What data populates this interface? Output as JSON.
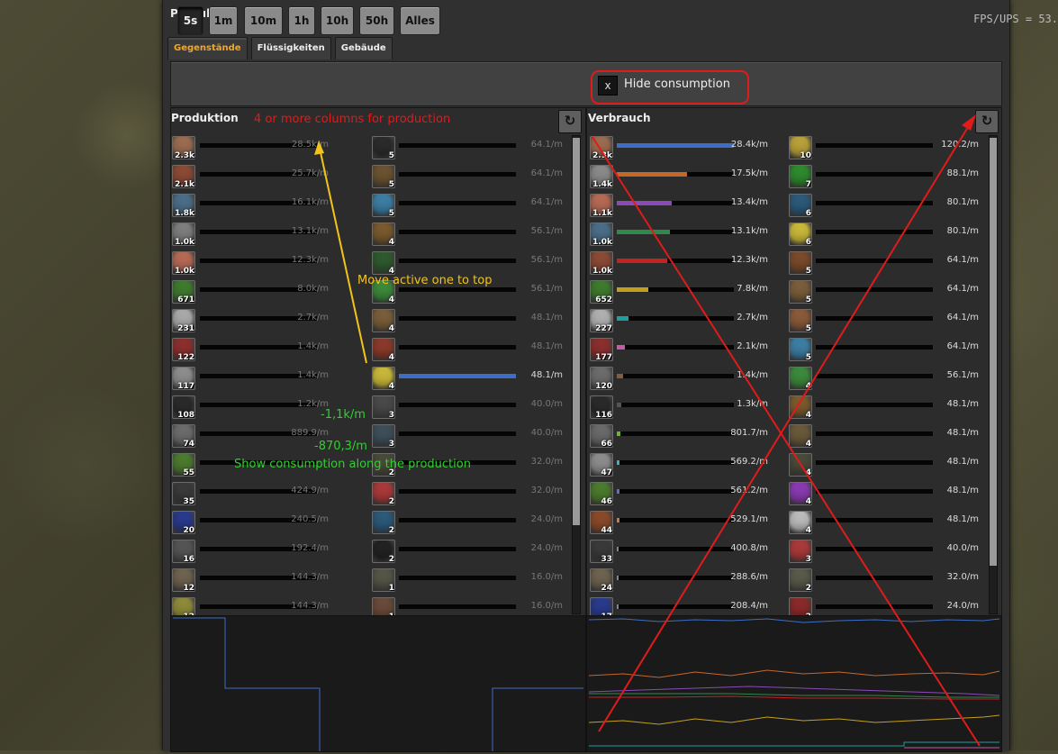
{
  "window": {
    "title": "Produktion",
    "fps": "FPS/UPS = 53."
  },
  "tabs": [
    {
      "label": "Gegenstände",
      "active": true
    },
    {
      "label": "Flüssigkeiten",
      "active": false
    },
    {
      "label": "Gebäude",
      "active": false
    }
  ],
  "time_buttons": [
    {
      "label": "5s",
      "active": true
    },
    {
      "label": "1m",
      "active": false
    },
    {
      "label": "10m",
      "active": false
    },
    {
      "label": "1h",
      "active": false
    },
    {
      "label": "10h",
      "active": false
    },
    {
      "label": "50h",
      "active": false
    },
    {
      "label": "Alles",
      "active": false
    }
  ],
  "hide_consumption": {
    "checkbox": "x",
    "label": "Hide consumption"
  },
  "production": {
    "title": "Produktion",
    "left": [
      {
        "icon": "copper-ore-icon",
        "color": "#9a6c52",
        "count": "2.3k",
        "rate": "28.5k/m",
        "fill": 0.0
      },
      {
        "icon": "copper-ore-pile-icon",
        "color": "#8a4a36",
        "count": "2.1k",
        "rate": "25.7k/m",
        "fill": 0.0
      },
      {
        "icon": "iron-ore-icon",
        "color": "#4b6e88",
        "count": "1.8k",
        "rate": "16.1k/m",
        "fill": 0.0
      },
      {
        "icon": "iron-plate-icon",
        "color": "#7e7e7e",
        "count": "1.0k",
        "rate": "13.1k/m",
        "fill": 0.0
      },
      {
        "icon": "copper-plate-icon",
        "color": "#b56a55",
        "count": "1.0k",
        "rate": "12.3k/m",
        "fill": 0.0
      },
      {
        "icon": "electronic-circuit-icon",
        "color": "#3f7a2e",
        "count": "671",
        "rate": "8.0k/m",
        "fill": 0.0
      },
      {
        "icon": "steel-plate-icon",
        "color": "#a9a9a9",
        "count": "231",
        "rate": "2.7k/m",
        "fill": 0.0
      },
      {
        "icon": "brick-icon",
        "color": "#8b2f2f",
        "count": "122",
        "rate": "1.4k/m",
        "fill": 0.0
      },
      {
        "icon": "pipe-icon",
        "color": "#8d8d8d",
        "count": "117",
        "rate": "1.4k/m",
        "fill": 0.0
      },
      {
        "icon": "coal-icon",
        "color": "#2a2a2a",
        "count": "108",
        "rate": "1.2k/m",
        "fill": 0.0
      },
      {
        "icon": "iron-gear-icon",
        "color": "#6c6c6c",
        "count": "74",
        "rate": "889.9/m",
        "fill": 0.0
      },
      {
        "icon": "wood-icon",
        "color": "#4c7a2e",
        "count": "55",
        "rate": "",
        "fill": 0.0
      },
      {
        "icon": "stone-icon",
        "color": "#3a3a3a",
        "count": "35",
        "rate": "424.9/m",
        "fill": 0.0
      },
      {
        "icon": "advanced-circuit-icon",
        "color": "#2a3a8b",
        "count": "20",
        "rate": "240.5/m",
        "fill": 0.0
      },
      {
        "icon": "engine-unit-icon",
        "color": "#555555",
        "count": "16",
        "rate": "192.4/m",
        "fill": 0.0
      },
      {
        "icon": "rail-icon",
        "color": "#6e6250",
        "count": "12",
        "rate": "144.3/m",
        "fill": 0.0
      },
      {
        "icon": "sulfur-icon",
        "color": "#8e8a3a",
        "count": "12",
        "rate": "144.3/m",
        "fill": 0.0
      }
    ],
    "right": [
      {
        "icon": "stone-furnace-icon",
        "color": "#2b2b2b",
        "count": "5",
        "rate": "64.1/m",
        "fill": 0.0
      },
      {
        "icon": "transport-belt-icon",
        "color": "#6b5331",
        "count": "5",
        "rate": "64.1/m",
        "fill": 0.0
      },
      {
        "icon": "science-pack-icon",
        "color": "#3c7ea3",
        "count": "5",
        "rate": "64.1/m",
        "fill": 0.0
      },
      {
        "icon": "inserter-icon",
        "color": "#7a5a2e",
        "count": "4",
        "rate": "56.1/m",
        "fill": 0.0
      },
      {
        "icon": "green-module-icon",
        "color": "#2e5a2e",
        "count": "4",
        "rate": "56.1/m",
        "fill": 0.0
      },
      {
        "icon": "green-flask-icon",
        "color": "#3c8a3c",
        "count": "4",
        "rate": "56.1/m",
        "fill": 0.0
      },
      {
        "icon": "burner-drill-icon",
        "color": "#7a5e3a",
        "count": "4",
        "rate": "48.1/m",
        "fill": 0.0
      },
      {
        "icon": "battery-icon",
        "color": "#8a3a2a",
        "count": "4",
        "rate": "48.1/m",
        "fill": 0.0
      },
      {
        "icon": "yellow-flask-icon",
        "color": "#c8b73a",
        "count": "4",
        "rate": "48.1/m",
        "fill": 1.0,
        "fill_color": "#3b6ec4"
      },
      {
        "icon": "chest-icon",
        "color": "#4a4a4a",
        "count": "3",
        "rate": "40.0/m",
        "fill": 0.0
      },
      {
        "icon": "assembler-icon",
        "color": "#3f4f5a",
        "count": "3",
        "rate": "40.0/m",
        "fill": 0.0
      },
      {
        "icon": "turret-icon",
        "color": "#4a4a3a",
        "count": "2",
        "rate": "32.0/m",
        "fill": 0.0
      },
      {
        "icon": "red-flask-icon",
        "color": "#a83a3a",
        "count": "2",
        "rate": "32.0/m",
        "fill": 0.0
      },
      {
        "icon": "blue-module-icon",
        "color": "#2c5a7a",
        "count": "2",
        "rate": "24.0/m",
        "fill": 0.0
      },
      {
        "icon": "black-canister-icon",
        "color": "#222222",
        "count": "2",
        "rate": "24.0/m",
        "fill": 0.0
      },
      {
        "icon": "wall-icon",
        "color": "#555548",
        "count": "1",
        "rate": "16.0/m",
        "fill": 0.0
      },
      {
        "icon": "gun-icon",
        "color": "#6a4a3a",
        "count": "1",
        "rate": "16.0/m",
        "fill": 0.0
      }
    ]
  },
  "consumption": {
    "title": "Verbrauch",
    "left": [
      {
        "icon": "copper-ore-icon",
        "color": "#9a6c52",
        "count": "2.3k",
        "rate": "28.4k/m",
        "fill": 1.0,
        "fill_color": "#3b6ec4"
      },
      {
        "icon": "stone-icon",
        "color": "#8a8a8a",
        "count": "1.4k",
        "rate": "17.5k/m",
        "fill": 0.6,
        "fill_color": "#c4682a"
      },
      {
        "icon": "copper-plate-icon",
        "color": "#b56a55",
        "count": "1.1k",
        "rate": "13.4k/m",
        "fill": 0.47,
        "fill_color": "#8a4bb8"
      },
      {
        "icon": "iron-ore-icon",
        "color": "#4b6e88",
        "count": "1.0k",
        "rate": "13.1k/m",
        "fill": 0.45,
        "fill_color": "#2e8a4a"
      },
      {
        "icon": "copper-ore-pile-icon",
        "color": "#8a4a36",
        "count": "1.0k",
        "rate": "12.3k/m",
        "fill": 0.43,
        "fill_color": "#c42222"
      },
      {
        "icon": "electronic-circuit-icon",
        "color": "#3f7a2e",
        "count": "652",
        "rate": "7.8k/m",
        "fill": 0.27,
        "fill_color": "#c4a01a"
      },
      {
        "icon": "steel-plate-icon",
        "color": "#b0b0b0",
        "count": "227",
        "rate": "2.7k/m",
        "fill": 0.1,
        "fill_color": "#1aa0a0"
      },
      {
        "icon": "brick-icon",
        "color": "#8b2f2f",
        "count": "177",
        "rate": "2.1k/m",
        "fill": 0.07,
        "fill_color": "#c45aa8"
      },
      {
        "icon": "iron-gear-icon",
        "color": "#6c6c6c",
        "count": "120",
        "rate": "1.4k/m",
        "fill": 0.05,
        "fill_color": "#8a5a3a"
      },
      {
        "icon": "coal-icon",
        "color": "#2a2a2a",
        "count": "116",
        "rate": "1.3k/m",
        "fill": 0.04,
        "fill_color": "#555555"
      },
      {
        "icon": "stone-brick-icon",
        "color": "#6a6a6a",
        "count": "66",
        "rate": "801.7/m",
        "fill": 0.03,
        "fill_color": "#6ab82a"
      },
      {
        "icon": "pipe-icon",
        "color": "#8d8d8d",
        "count": "47",
        "rate": "569.2/m",
        "fill": 0.02,
        "fill_color": "#3ab0c4"
      },
      {
        "icon": "wood-icon",
        "color": "#4c7a2e",
        "count": "46",
        "rate": "561.2/m",
        "fill": 0.02,
        "fill_color": "#6a6ac4"
      },
      {
        "icon": "copper-cable-icon",
        "color": "#8a4a2a",
        "count": "44",
        "rate": "529.1/m",
        "fill": 0.02,
        "fill_color": "#c47a4a"
      },
      {
        "icon": "stone-pile-icon",
        "color": "#3a3a3a",
        "count": "33",
        "rate": "400.8/m",
        "fill": 0.01,
        "fill_color": "#888888"
      },
      {
        "icon": "rail-icon",
        "color": "#6e6250",
        "count": "24",
        "rate": "288.6/m",
        "fill": 0.01,
        "fill_color": "#888888"
      },
      {
        "icon": "advanced-circuit-icon",
        "color": "#2a3a8b",
        "count": "17",
        "rate": "208.4/m",
        "fill": 0.01,
        "fill_color": "#888888"
      }
    ],
    "right": [
      {
        "icon": "yellow-ammo-icon",
        "color": "#b8a03a",
        "count": "10",
        "rate": "120.2/m",
        "fill": 0.0
      },
      {
        "icon": "green-tube-icon",
        "color": "#2e8a2e",
        "count": "7",
        "rate": "88.1/m",
        "fill": 0.0
      },
      {
        "icon": "blue-module-icon",
        "color": "#2c5a7a",
        "count": "6",
        "rate": "80.1/m",
        "fill": 0.0
      },
      {
        "icon": "yellow-flask-icon",
        "color": "#c8b73a",
        "count": "6",
        "rate": "80.1/m",
        "fill": 0.0
      },
      {
        "icon": "transport-belt-icon",
        "color": "#7a4a2a",
        "count": "5",
        "rate": "64.1/m",
        "fill": 0.0
      },
      {
        "icon": "burner-drill-icon",
        "color": "#7a5e3a",
        "count": "5",
        "rate": "64.1/m",
        "fill": 0.0
      },
      {
        "icon": "battery-icon",
        "color": "#8a5a3a",
        "count": "5",
        "rate": "64.1/m",
        "fill": 0.0
      },
      {
        "icon": "science-pack-icon",
        "color": "#3c7ea3",
        "count": "5",
        "rate": "64.1/m",
        "fill": 0.0
      },
      {
        "icon": "green-flask-icon",
        "color": "#3c8a3c",
        "count": "4",
        "rate": "56.1/m",
        "fill": 0.0
      },
      {
        "icon": "inserter-icon",
        "color": "#7a5a2e",
        "count": "4",
        "rate": "48.1/m",
        "fill": 0.0
      },
      {
        "icon": "splitter-icon",
        "color": "#6a5a3a",
        "count": "4",
        "rate": "48.1/m",
        "fill": 0.0
      },
      {
        "icon": "turret-icon",
        "color": "#4a4a3a",
        "count": "4",
        "rate": "48.1/m",
        "fill": 0.0
      },
      {
        "icon": "purple-flask-icon",
        "color": "#8a3ab0",
        "count": "4",
        "rate": "48.1/m",
        "fill": 0.0
      },
      {
        "icon": "white-flask-icon",
        "color": "#bbbbbb",
        "count": "4",
        "rate": "48.1/m",
        "fill": 0.0
      },
      {
        "icon": "red-flask-icon",
        "color": "#a83a3a",
        "count": "3",
        "rate": "40.0/m",
        "fill": 0.0
      },
      {
        "icon": "assembler-icon",
        "color": "#5a5a4a",
        "count": "2",
        "rate": "32.0/m",
        "fill": 0.0
      },
      {
        "icon": "red-barrel-icon",
        "color": "#8a2a2a",
        "count": "2",
        "rate": "24.0/m",
        "fill": 0.0
      }
    ]
  },
  "annotations": {
    "columns": "4 or more columns for production",
    "move_top": "Move active one to top",
    "neg1": "-1,1k/m",
    "neg2": "-870,3/m",
    "show_consumption": "Show consumption along the production"
  },
  "colors": {
    "red_annotation": "#e01b1b",
    "yellow_annotation": "#f2c31b",
    "green_annotation": "#30d030",
    "accent_orange": "#f5a623"
  }
}
